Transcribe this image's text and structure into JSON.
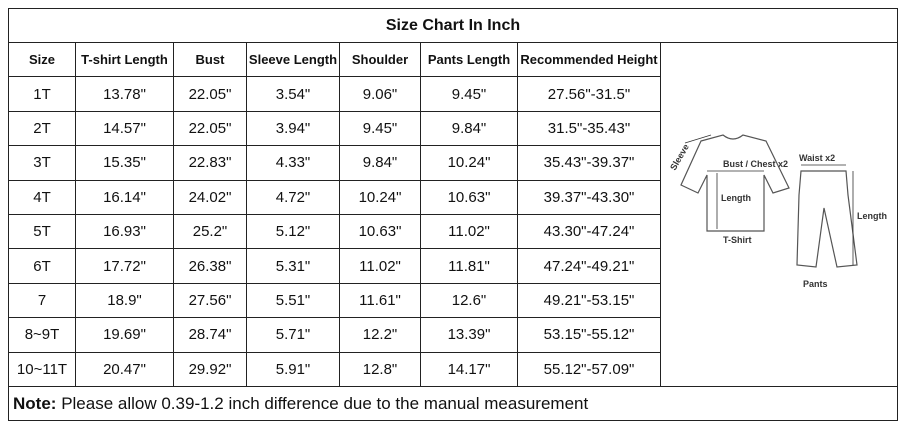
{
  "title": "Size Chart In Inch",
  "table": {
    "header": [
      "Size",
      "T-shirt Length",
      "Bust",
      "Sleeve Length",
      "Shoulder",
      "Pants Length",
      "Recommended Height"
    ],
    "rows": [
      [
        "1T",
        "13.78\"",
        "22.05\"",
        "3.54\"",
        "9.06\"",
        "9.45\"",
        "27.56\"-31.5\""
      ],
      [
        "2T",
        "14.57\"",
        "22.05\"",
        "3.94\"",
        "9.45\"",
        "9.84\"",
        "31.5\"-35.43\""
      ],
      [
        "3T",
        "15.35\"",
        "22.83\"",
        "4.33\"",
        "9.84\"",
        "10.24\"",
        "35.43\"-39.37\""
      ],
      [
        "4T",
        "16.14\"",
        "24.02\"",
        "4.72\"",
        "10.24\"",
        "10.63\"",
        "39.37\"-43.30\""
      ],
      [
        "5T",
        "16.93\"",
        "25.2\"",
        "5.12\"",
        "10.63\"",
        "11.02\"",
        "43.30\"-47.24\""
      ],
      [
        "6T",
        "17.72\"",
        "26.38\"",
        "5.31\"",
        "11.02\"",
        "11.81\"",
        "47.24\"-49.21\""
      ],
      [
        "7",
        "18.9\"",
        "27.56\"",
        "5.51\"",
        "11.61\"",
        "12.6\"",
        "49.21\"-53.15\""
      ],
      [
        "8~9T",
        "19.69\"",
        "28.74\"",
        "5.71\"",
        "12.2\"",
        "13.39\"",
        "53.15\"-55.12\""
      ],
      [
        "10~11T",
        "20.47\"",
        "29.92\"",
        "5.91\"",
        "12.8\"",
        "14.17\"",
        "55.12\"-57.09\""
      ]
    ]
  },
  "diagram": {
    "sleeve": "Sleeve",
    "bust": "Bust / Chest x2",
    "shirt_length": "Length",
    "shirt": "T-Shirt",
    "waist": "Waist x2",
    "pants_length": "Length",
    "pants": "Pants"
  },
  "note": {
    "label": "Note:",
    "text": "Please allow 0.39-1.2 inch difference due to the manual measurement"
  }
}
